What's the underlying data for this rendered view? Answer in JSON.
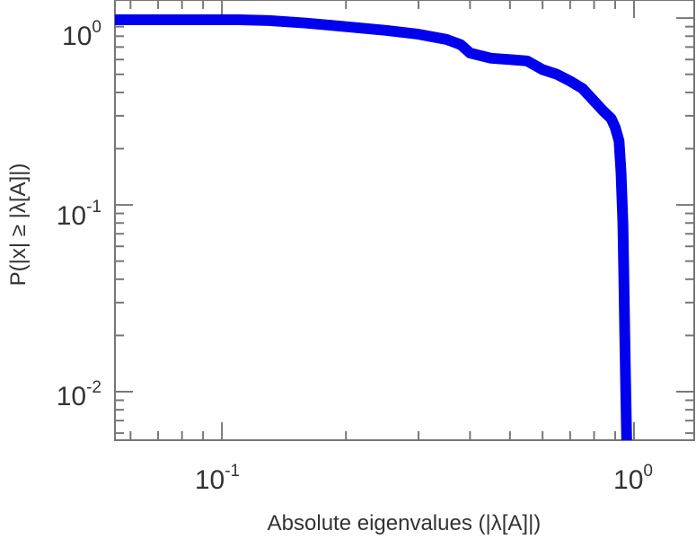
{
  "chart_data": {
    "type": "line",
    "title": "",
    "xlabel": "Absolute eigenvalues (|λ[A]|)",
    "ylabel": "P(|x| ≥ |λ[A]|)",
    "x_scale": "log",
    "y_scale": "log",
    "xlim": [
      0.055,
      1.4
    ],
    "ylim": [
      0.0055,
      1.25
    ],
    "x_ticks": [
      {
        "base": "10",
        "exp": "-1",
        "value": 0.1
      },
      {
        "base": "10",
        "exp": "0",
        "value": 1
      }
    ],
    "y_ticks": [
      {
        "base": "10",
        "exp": "0",
        "value": 1
      },
      {
        "base": "10",
        "exp": "-1",
        "value": 0.1
      },
      {
        "base": "10",
        "exp": "-2",
        "value": 0.01
      }
    ],
    "grid": false,
    "color": "#0000ee",
    "series": [
      {
        "x": [
          0.055,
          0.07,
          0.09,
          0.11,
          0.13,
          0.16,
          0.2,
          0.25,
          0.3,
          0.35,
          0.38,
          0.4,
          0.45,
          0.5,
          0.55,
          0.6,
          0.65,
          0.7,
          0.75,
          0.8,
          0.84,
          0.88,
          0.9,
          0.92,
          0.93,
          0.94,
          0.945,
          0.95,
          0.955,
          0.958,
          0.96
        ],
        "y": [
          0.98,
          0.98,
          0.98,
          0.98,
          0.97,
          0.94,
          0.9,
          0.86,
          0.82,
          0.77,
          0.72,
          0.65,
          0.61,
          0.6,
          0.59,
          0.53,
          0.5,
          0.46,
          0.42,
          0.36,
          0.32,
          0.29,
          0.26,
          0.22,
          0.15,
          0.08,
          0.04,
          0.02,
          0.01,
          0.007,
          0.0055
        ]
      }
    ]
  }
}
